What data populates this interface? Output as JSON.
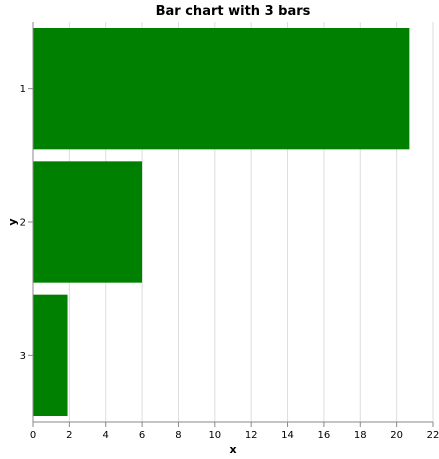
{
  "chart_data": {
    "type": "bar",
    "orientation": "horizontal",
    "title": "Bar chart with 3 bars",
    "xlabel": "x",
    "ylabel": "y",
    "categories": [
      "1",
      "2",
      "3"
    ],
    "values": [
      20.7,
      6.0,
      1.9
    ],
    "xlim": [
      0,
      22
    ],
    "x_ticks": [
      0,
      2,
      4,
      6,
      8,
      10,
      12,
      14,
      16,
      18,
      20,
      22
    ],
    "grid": true,
    "bar_color": "#008000"
  }
}
